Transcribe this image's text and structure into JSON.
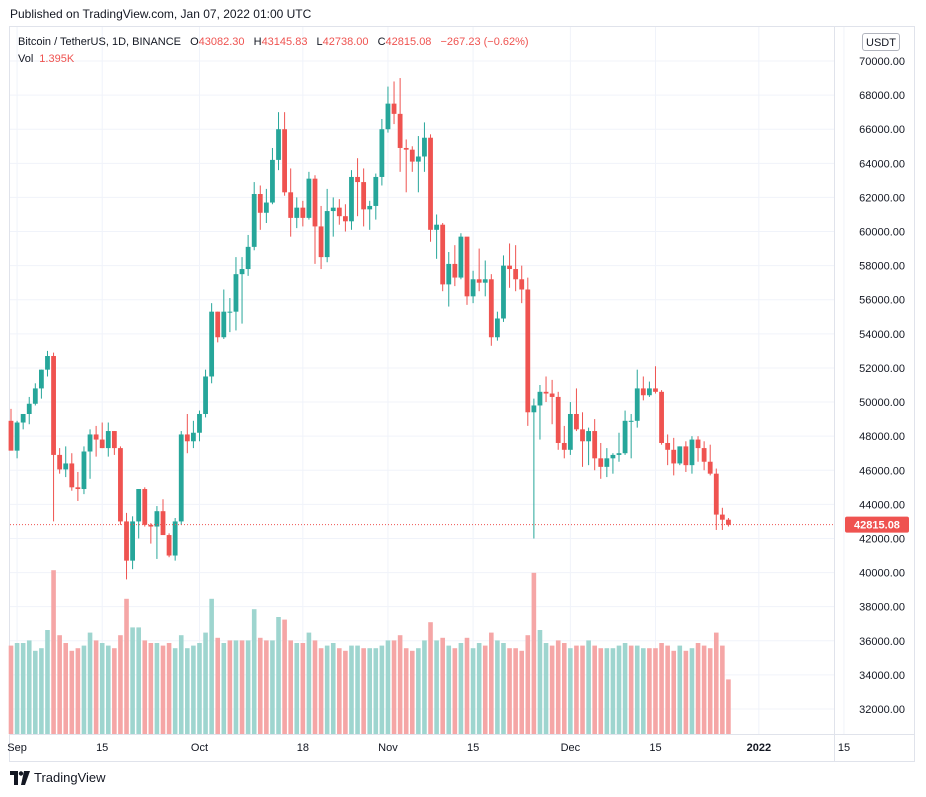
{
  "header": {
    "published": "Published on TradingView.com, Jan 07, 2022 01:00 UTC"
  },
  "legend": {
    "symbol": "Bitcoin / TetherUS, 1D, BINANCE",
    "o_label": "O",
    "o_value": "43082.30",
    "h_label": "H",
    "h_value": "43145.83",
    "l_label": "L",
    "l_value": "42738.00",
    "c_label": "C",
    "c_value": "42815.08",
    "change": "−267.23 (−0.62%)",
    "vol_label": "Vol",
    "vol_value": "1.395K"
  },
  "unit_button": "USDT",
  "price_tag": "42815.08",
  "footer": {
    "brand": "TradingView",
    "logo_icon": "tradingview-logo-icon"
  },
  "colors": {
    "up": "#26a69a",
    "down": "#ef5350",
    "up_vol": "#9ed5cf",
    "down_vol": "#f5a6a6"
  },
  "chart_data": {
    "type": "candlestick",
    "title": "Bitcoin / TetherUS, 1D, BINANCE",
    "ylim": [
      31000,
      71000
    ],
    "y_ticks": [
      "70000.00",
      "68000.00",
      "66000.00",
      "64000.00",
      "62000.00",
      "60000.00",
      "58000.00",
      "56000.00",
      "54000.00",
      "52000.00",
      "50000.00",
      "48000.00",
      "46000.00",
      "44000.00",
      "42000.00",
      "40000.00",
      "38000.00",
      "36000.00",
      "34000.00",
      "32000.00"
    ],
    "x_ticks": [
      {
        "label": "Sep",
        "day": 1
      },
      {
        "label": "15",
        "day": 15
      },
      {
        "label": "Oct",
        "day": 31
      },
      {
        "label": "18",
        "day": 48
      },
      {
        "label": "Nov",
        "day": 62
      },
      {
        "label": "15",
        "day": 76
      },
      {
        "label": "Dec",
        "day": 92
      },
      {
        "label": "15",
        "day": 106
      },
      {
        "label": "2022",
        "day": 123
      },
      {
        "label": "15",
        "day": 137
      }
    ],
    "last_price": 42815.08,
    "ohlc": [
      [
        48900,
        49600,
        47400,
        47150
      ],
      [
        47150,
        48900,
        46700,
        48800
      ],
      [
        48800,
        49300,
        48400,
        49300
      ],
      [
        49300,
        50300,
        48700,
        49900
      ],
      [
        49900,
        51100,
        49800,
        50800
      ],
      [
        50800,
        51900,
        50200,
        51900
      ],
      [
        51900,
        53000,
        51500,
        52700
      ],
      [
        52700,
        52900,
        43000,
        46900
      ],
      [
        46900,
        47300,
        45800,
        46050
      ],
      [
        46050,
        47400,
        45600,
        46400
      ],
      [
        46400,
        47000,
        44800,
        45000
      ],
      [
        45000,
        45900,
        44200,
        44900
      ],
      [
        44900,
        47400,
        44600,
        47100
      ],
      [
        47100,
        48400,
        45500,
        48100
      ],
      [
        48100,
        48600,
        46800,
        47800
      ],
      [
        47800,
        48800,
        47300,
        47300
      ],
      [
        47300,
        48800,
        46800,
        48300
      ],
      [
        48300,
        48300,
        46900,
        47300
      ],
      [
        47300,
        47400,
        42800,
        43000
      ],
      [
        43000,
        43500,
        39600,
        40700
      ],
      [
        40700,
        43300,
        40200,
        43000
      ],
      [
        43000,
        44900,
        42000,
        44900
      ],
      [
        44900,
        45000,
        42700,
        42800
      ],
      [
        42800,
        42900,
        41700,
        42700
      ],
      [
        42700,
        43900,
        40800,
        43600
      ],
      [
        43600,
        44300,
        42500,
        42200
      ],
      [
        42200,
        42300,
        40900,
        41000
      ],
      [
        41000,
        43200,
        40700,
        43000
      ],
      [
        43000,
        48300,
        42800,
        48100
      ],
      [
        48100,
        49300,
        47000,
        47700
      ],
      [
        47700,
        48900,
        47300,
        48200
      ],
      [
        48200,
        49500,
        47700,
        49300
      ],
      [
        49300,
        51900,
        49100,
        51500
      ],
      [
        51500,
        55800,
        51100,
        55300
      ],
      [
        55300,
        55300,
        53500,
        53800
      ],
      [
        53800,
        56600,
        53700,
        55300
      ],
      [
        55300,
        56100,
        54100,
        55300
      ],
      [
        55300,
        58500,
        54200,
        57500
      ],
      [
        57500,
        58500,
        54600,
        57800
      ],
      [
        57800,
        59800,
        57400,
        59100
      ],
      [
        59100,
        62900,
        58900,
        62200
      ],
      [
        62200,
        62700,
        60100,
        61100
      ],
      [
        61100,
        62500,
        60500,
        61700
      ],
      [
        61700,
        64900,
        61600,
        64200
      ],
      [
        64200,
        67000,
        63600,
        66000
      ],
      [
        66000,
        67000,
        62100,
        62300
      ],
      [
        62300,
        63700,
        59700,
        60800
      ],
      [
        60800,
        62000,
        60200,
        61400
      ],
      [
        61400,
        61800,
        60300,
        60800
      ],
      [
        60800,
        63500,
        60700,
        63100
      ],
      [
        63100,
        63300,
        58100,
        60300
      ],
      [
        60300,
        61500,
        57800,
        58500
      ],
      [
        58500,
        62500,
        58200,
        61200
      ],
      [
        61200,
        62000,
        59700,
        61400
      ],
      [
        61400,
        61900,
        60400,
        60900
      ],
      [
        60900,
        61600,
        60000,
        60600
      ],
      [
        60600,
        63600,
        60100,
        63200
      ],
      [
        63200,
        64300,
        60900,
        62900
      ],
      [
        62900,
        63700,
        60300,
        61300
      ],
      [
        61300,
        61800,
        60100,
        61500
      ],
      [
        61500,
        63400,
        60700,
        63200
      ],
      [
        63200,
        66600,
        62700,
        66000
      ],
      [
        66000,
        68500,
        65800,
        67500
      ],
      [
        67500,
        68800,
        66300,
        66900
      ],
      [
        66900,
        69000,
        63500,
        64900
      ],
      [
        64900,
        65400,
        62300,
        64800
      ],
      [
        64800,
        65000,
        63500,
        64100
      ],
      [
        64100,
        65600,
        62300,
        64400
      ],
      [
        64400,
        66400,
        63500,
        65500
      ],
      [
        65500,
        65700,
        59400,
        60100
      ],
      [
        60100,
        61000,
        58400,
        60400
      ],
      [
        60400,
        60500,
        56500,
        56900
      ],
      [
        56900,
        58800,
        55600,
        58100
      ],
      [
        58100,
        59200,
        56800,
        57300
      ],
      [
        57300,
        59900,
        57200,
        59700
      ],
      [
        59700,
        59300,
        55700,
        56200
      ],
      [
        56200,
        57700,
        55800,
        57200
      ],
      [
        57200,
        59000,
        56500,
        57000
      ],
      [
        57000,
        58300,
        56200,
        57200
      ],
      [
        57200,
        57500,
        53300,
        53800
      ],
      [
        53800,
        55300,
        53600,
        54900
      ],
      [
        54900,
        58600,
        54700,
        58000
      ],
      [
        58000,
        59300,
        56700,
        57800
      ],
      [
        57800,
        59200,
        56500,
        57200
      ],
      [
        57200,
        58000,
        55800,
        56600
      ],
      [
        56600,
        57300,
        48600,
        49400
      ],
      [
        49400,
        50200,
        42000,
        49800
      ],
      [
        49800,
        51000,
        47800,
        50600
      ],
      [
        50600,
        51500,
        50000,
        50500
      ],
      [
        50500,
        51300,
        48700,
        50300
      ],
      [
        50300,
        50600,
        47200,
        47600
      ],
      [
        47600,
        48600,
        46700,
        47200
      ],
      [
        47200,
        50000,
        46900,
        49300
      ],
      [
        49300,
        50800,
        48300,
        48400
      ],
      [
        48400,
        49400,
        46200,
        47700
      ],
      [
        47700,
        48500,
        46300,
        48300
      ],
      [
        48300,
        49000,
        46000,
        46700
      ],
      [
        46700,
        47600,
        45500,
        46200
      ],
      [
        46200,
        47300,
        45600,
        46700
      ],
      [
        46700,
        47000,
        45800,
        46900
      ],
      [
        46900,
        48200,
        46500,
        47000
      ],
      [
        47000,
        49500,
        46900,
        48900
      ],
      [
        48900,
        49300,
        46700,
        48900
      ],
      [
        48900,
        51900,
        48500,
        50800
      ],
      [
        50800,
        51500,
        50100,
        50400
      ],
      [
        50400,
        51200,
        50300,
        50800
      ],
      [
        50800,
        52100,
        50500,
        50600
      ],
      [
        50600,
        50700,
        47500,
        47600
      ],
      [
        47600,
        48100,
        46300,
        47200
      ],
      [
        47200,
        47900,
        45700,
        46400
      ],
      [
        46400,
        47400,
        46300,
        47400
      ],
      [
        47400,
        47700,
        45900,
        46300
      ],
      [
        46300,
        48000,
        45800,
        47800
      ],
      [
        47800,
        48000,
        46500,
        47300
      ],
      [
        47300,
        47700,
        46000,
        46500
      ],
      [
        46500,
        47500,
        45700,
        45800
      ],
      [
        45800,
        46100,
        42500,
        43400
      ],
      [
        43400,
        43800,
        42500,
        43100
      ],
      [
        43100,
        43200,
        42700,
        42800
      ]
    ],
    "volume": [
      [
        3.4,
        false
      ],
      [
        3.5,
        true
      ],
      [
        3.5,
        true
      ],
      [
        3.6,
        true
      ],
      [
        3.2,
        true
      ],
      [
        3.3,
        true
      ],
      [
        4.0,
        true
      ],
      [
        6.3,
        false
      ],
      [
        3.8,
        false
      ],
      [
        3.5,
        false
      ],
      [
        3.2,
        false
      ],
      [
        3.3,
        false
      ],
      [
        3.4,
        true
      ],
      [
        3.9,
        true
      ],
      [
        3.6,
        false
      ],
      [
        3.5,
        true
      ],
      [
        3.4,
        true
      ],
      [
        3.3,
        false
      ],
      [
        3.8,
        false
      ],
      [
        5.2,
        false
      ],
      [
        4.1,
        true
      ],
      [
        4.1,
        true
      ],
      [
        3.6,
        false
      ],
      [
        3.5,
        false
      ],
      [
        3.5,
        true
      ],
      [
        3.4,
        false
      ],
      [
        3.5,
        false
      ],
      [
        3.3,
        true
      ],
      [
        3.8,
        true
      ],
      [
        3.3,
        true
      ],
      [
        3.4,
        true
      ],
      [
        3.5,
        true
      ],
      [
        3.9,
        true
      ],
      [
        5.2,
        true
      ],
      [
        3.7,
        false
      ],
      [
        3.5,
        true
      ],
      [
        3.6,
        false
      ],
      [
        3.6,
        true
      ],
      [
        3.6,
        false
      ],
      [
        3.6,
        true
      ],
      [
        4.8,
        true
      ],
      [
        3.7,
        false
      ],
      [
        3.6,
        false
      ],
      [
        3.6,
        true
      ],
      [
        4.5,
        true
      ],
      [
        4.4,
        false
      ],
      [
        3.6,
        false
      ],
      [
        3.5,
        true
      ],
      [
        3.5,
        false
      ],
      [
        3.9,
        true
      ],
      [
        3.6,
        false
      ],
      [
        3.3,
        false
      ],
      [
        3.4,
        true
      ],
      [
        3.5,
        true
      ],
      [
        3.3,
        false
      ],
      [
        3.2,
        false
      ],
      [
        3.4,
        true
      ],
      [
        3.4,
        true
      ],
      [
        3.3,
        false
      ],
      [
        3.3,
        true
      ],
      [
        3.3,
        true
      ],
      [
        3.4,
        true
      ],
      [
        3.6,
        true
      ],
      [
        3.6,
        false
      ],
      [
        3.8,
        false
      ],
      [
        3.3,
        false
      ],
      [
        3.2,
        false
      ],
      [
        3.3,
        true
      ],
      [
        3.6,
        true
      ],
      [
        4.3,
        false
      ],
      [
        3.6,
        true
      ],
      [
        3.7,
        false
      ],
      [
        3.4,
        true
      ],
      [
        3.3,
        false
      ],
      [
        3.5,
        true
      ],
      [
        3.7,
        false
      ],
      [
        3.3,
        true
      ],
      [
        3.5,
        true
      ],
      [
        3.4,
        false
      ],
      [
        3.9,
        false
      ],
      [
        3.6,
        true
      ],
      [
        3.5,
        true
      ],
      [
        3.3,
        false
      ],
      [
        3.3,
        false
      ],
      [
        3.2,
        false
      ],
      [
        3.8,
        false
      ],
      [
        6.2,
        false
      ],
      [
        4.0,
        true
      ],
      [
        3.5,
        true
      ],
      [
        3.4,
        false
      ],
      [
        3.6,
        false
      ],
      [
        3.5,
        false
      ],
      [
        3.3,
        true
      ],
      [
        3.4,
        false
      ],
      [
        3.4,
        false
      ],
      [
        3.6,
        true
      ],
      [
        3.4,
        false
      ],
      [
        3.3,
        false
      ],
      [
        3.3,
        true
      ],
      [
        3.3,
        true
      ],
      [
        3.4,
        true
      ],
      [
        3.5,
        true
      ],
      [
        3.4,
        false
      ],
      [
        3.4,
        true
      ],
      [
        3.3,
        true
      ],
      [
        3.3,
        false
      ],
      [
        3.3,
        false
      ],
      [
        3.5,
        false
      ],
      [
        3.4,
        false
      ],
      [
        3.2,
        false
      ],
      [
        3.4,
        true
      ],
      [
        3.2,
        false
      ],
      [
        3.3,
        true
      ],
      [
        3.5,
        false
      ],
      [
        3.4,
        false
      ],
      [
        3.3,
        false
      ],
      [
        3.9,
        false
      ],
      [
        3.4,
        false
      ],
      [
        2.1,
        false
      ]
    ]
  }
}
